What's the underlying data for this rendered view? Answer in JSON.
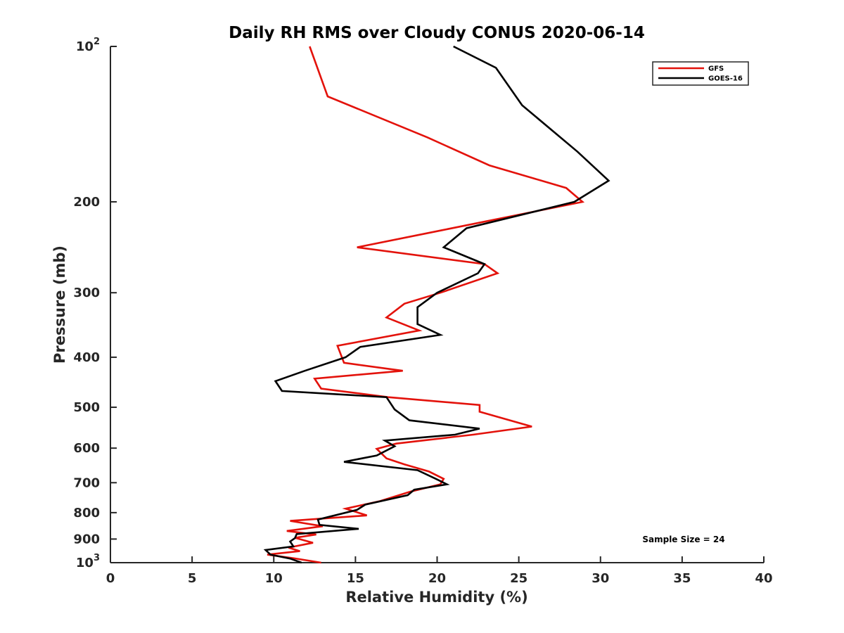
{
  "chart_data": {
    "type": "line",
    "title": "Daily RH RMS over Cloudy CONUS 2020-06-14",
    "xlabel": "Relative Humidity (%)",
    "ylabel": "Pressure (mb)",
    "xlim": [
      0,
      40
    ],
    "ylim": [
      100,
      1000
    ],
    "yscale": "log",
    "y_reversed": true,
    "grid": false,
    "legend_position": "top-right",
    "x_ticks": [
      "0",
      "5",
      "10",
      "15",
      "20",
      "25",
      "30",
      "35",
      "40"
    ],
    "x_tick_values": [
      0,
      5,
      10,
      15,
      20,
      25,
      30,
      35,
      40
    ],
    "y_ticks": [
      {
        "value": 100,
        "base": "10",
        "exp": "2"
      },
      {
        "value": 200,
        "label": "200"
      },
      {
        "value": 300,
        "label": "300"
      },
      {
        "value": 400,
        "label": "400"
      },
      {
        "value": 500,
        "label": "500"
      },
      {
        "value": 600,
        "label": "600"
      },
      {
        "value": 700,
        "label": "700"
      },
      {
        "value": 800,
        "label": "800"
      },
      {
        "value": 900,
        "label": "900"
      },
      {
        "value": 1000,
        "base": "10",
        "exp": "3"
      }
    ],
    "annotation": "Sample Size = 24",
    "series": [
      {
        "name": "GFS",
        "color": "#e3120b",
        "points": [
          [
            12.2,
            100
          ],
          [
            13.3,
            125
          ],
          [
            19.4,
            150
          ],
          [
            23.2,
            170
          ],
          [
            27.9,
            188
          ],
          [
            28.9,
            200
          ],
          [
            20.3,
            227
          ],
          [
            15.1,
            245
          ],
          [
            22.9,
            264
          ],
          [
            23.7,
            275
          ],
          [
            20.2,
            300
          ],
          [
            18.0,
            315
          ],
          [
            16.9,
            335
          ],
          [
            18.9,
            355
          ],
          [
            13.9,
            380
          ],
          [
            14.3,
            410
          ],
          [
            17.9,
            425
          ],
          [
            12.5,
            440
          ],
          [
            12.9,
            460
          ],
          [
            17.0,
            478
          ],
          [
            22.6,
            495
          ],
          [
            22.6,
            510
          ],
          [
            25.8,
            545
          ],
          [
            22.2,
            565
          ],
          [
            17.5,
            588
          ],
          [
            16.3,
            602
          ],
          [
            16.9,
            628
          ],
          [
            18.0,
            645
          ],
          [
            19.5,
            666
          ],
          [
            20.4,
            688
          ],
          [
            20.2,
            705
          ],
          [
            18.4,
            728
          ],
          [
            16.5,
            760
          ],
          [
            14.4,
            786
          ],
          [
            15.7,
            810
          ],
          [
            11.0,
            830
          ],
          [
            13.0,
            850
          ],
          [
            10.8,
            868
          ],
          [
            12.6,
            882
          ],
          [
            11.3,
            895
          ],
          [
            12.4,
            915
          ],
          [
            10.9,
            935
          ],
          [
            11.6,
            950
          ],
          [
            9.6,
            965
          ],
          [
            11.2,
            980
          ],
          [
            12.9,
            1000
          ]
        ]
      },
      {
        "name": "GOES-16",
        "color": "#000000",
        "points": [
          [
            21.0,
            100
          ],
          [
            23.6,
            110
          ],
          [
            25.2,
            130
          ],
          [
            28.6,
            160
          ],
          [
            30.5,
            182
          ],
          [
            28.4,
            200
          ],
          [
            21.8,
            225
          ],
          [
            20.4,
            245
          ],
          [
            22.9,
            264
          ],
          [
            22.5,
            275
          ],
          [
            20.0,
            300
          ],
          [
            18.8,
            320
          ],
          [
            18.8,
            345
          ],
          [
            20.2,
            362
          ],
          [
            15.3,
            382
          ],
          [
            14.4,
            400
          ],
          [
            11.9,
            425
          ],
          [
            10.1,
            445
          ],
          [
            10.5,
            465
          ],
          [
            16.9,
            478
          ],
          [
            17.4,
            505
          ],
          [
            18.3,
            530
          ],
          [
            22.6,
            550
          ],
          [
            21.1,
            565
          ],
          [
            16.8,
            580
          ],
          [
            17.4,
            595
          ],
          [
            16.3,
            620
          ],
          [
            14.3,
            638
          ],
          [
            18.8,
            662
          ],
          [
            20.0,
            690
          ],
          [
            20.6,
            705
          ],
          [
            18.6,
            722
          ],
          [
            18.2,
            740
          ],
          [
            15.6,
            772
          ],
          [
            15.1,
            790
          ],
          [
            12.7,
            825
          ],
          [
            12.8,
            845
          ],
          [
            15.2,
            860
          ],
          [
            11.4,
            880
          ],
          [
            11.3,
            896
          ],
          [
            11.0,
            910
          ],
          [
            11.2,
            930
          ],
          [
            9.5,
            945
          ],
          [
            9.8,
            965
          ],
          [
            11.0,
            982
          ],
          [
            11.7,
            1000
          ]
        ]
      }
    ]
  }
}
